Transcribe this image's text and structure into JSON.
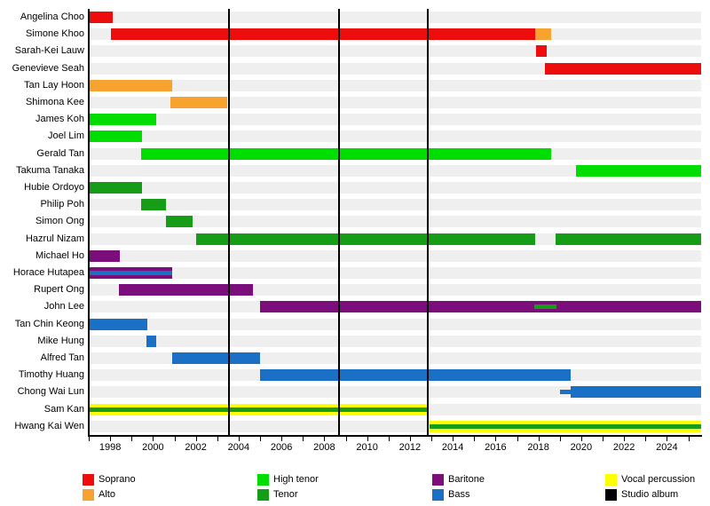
{
  "chart_data": {
    "type": "timeline",
    "title": "",
    "xlabel": "",
    "ylabel": "",
    "grid": false,
    "x_domain": [
      1997,
      2025.6
    ],
    "x_tick_labels": [
      "1998",
      "2000",
      "2002",
      "2004",
      "2006",
      "2008",
      "2010",
      "2012",
      "2014",
      "2016",
      "2018",
      "2020",
      "2022",
      "2024"
    ],
    "x_tick_years": [
      1998,
      2000,
      2002,
      2004,
      2006,
      2008,
      2010,
      2012,
      2014,
      2016,
      2018,
      2020,
      2022,
      2024
    ],
    "minor_tick_start": 1997,
    "minor_tick_end": 2025,
    "albums_years": [
      2003.55,
      2008.7,
      2012.85
    ],
    "colors": {
      "soprano": "#ee0d0d",
      "alto": "#f7a32f",
      "high_tenor": "#00dd00",
      "tenor": "#169c16",
      "baritone": "#7c0e7c",
      "bass": "#1a70c5",
      "vocal_percussion": "#ffff00",
      "studio_album": "#000000",
      "row_track": "#efefef"
    },
    "legend": [
      {
        "label": "Soprano",
        "part": "soprano"
      },
      {
        "label": "Alto",
        "part": "alto"
      },
      {
        "label": "High tenor",
        "part": "high_tenor"
      },
      {
        "label": "Tenor",
        "part": "tenor"
      },
      {
        "label": "Baritone",
        "part": "baritone"
      },
      {
        "label": "Bass",
        "part": "bass"
      },
      {
        "label": "Vocal percussion",
        "part": "vocal_percussion"
      },
      {
        "label": "Studio album",
        "part": "studio_album"
      }
    ],
    "members": [
      {
        "name": "Angelina Choo",
        "bars": [
          {
            "part": "soprano",
            "start": 1997,
            "end": 1998.1
          }
        ]
      },
      {
        "name": "Simone Khoo",
        "bars": [
          {
            "part": "soprano",
            "start": 1998.05,
            "end": 2017.85
          },
          {
            "part": "alto",
            "start": 2017.85,
            "end": 2018.6
          }
        ]
      },
      {
        "name": "Sarah-Kei Lauw",
        "bars": [
          {
            "part": "soprano",
            "start": 2017.9,
            "end": 2018.4
          }
        ]
      },
      {
        "name": "Genevieve Seah",
        "bars": [
          {
            "part": "soprano",
            "start": 2018.3,
            "end": 2025.6
          }
        ]
      },
      {
        "name": "Tan Lay Hoon",
        "bars": [
          {
            "part": "alto",
            "start": 1997,
            "end": 2000.9
          }
        ]
      },
      {
        "name": "Shimona Kee",
        "bars": [
          {
            "part": "alto",
            "start": 2000.8,
            "end": 2003.45
          }
        ]
      },
      {
        "name": "James Koh",
        "bars": [
          {
            "part": "high_tenor",
            "start": 1997,
            "end": 2000.15
          }
        ]
      },
      {
        "name": "Joel Lim",
        "bars": [
          {
            "part": "high_tenor",
            "start": 1997,
            "end": 1999.5
          }
        ]
      },
      {
        "name": "Gerald Tan",
        "bars": [
          {
            "part": "high_tenor",
            "start": 1999.45,
            "end": 2018.6
          }
        ]
      },
      {
        "name": "Takuma Tanaka",
        "bars": [
          {
            "part": "high_tenor",
            "start": 2019.75,
            "end": 2025.6
          }
        ]
      },
      {
        "name": "Hubie Ordoyo",
        "bars": [
          {
            "part": "tenor",
            "start": 1997,
            "end": 1999.5
          }
        ]
      },
      {
        "name": "Philip Poh",
        "bars": [
          {
            "part": "tenor",
            "start": 1999.45,
            "end": 2000.6
          }
        ]
      },
      {
        "name": "Simon Ong",
        "bars": [
          {
            "part": "tenor",
            "start": 2000.6,
            "end": 2001.85
          }
        ]
      },
      {
        "name": "Hazrul Nizam",
        "bars": [
          {
            "part": "tenor",
            "start": 2002,
            "end": 2017.85
          },
          {
            "part": "tenor",
            "start": 2018.8,
            "end": 2025.6
          }
        ]
      },
      {
        "name": "Michael Ho",
        "bars": [
          {
            "part": "baritone",
            "start": 1997,
            "end": 1998.45
          }
        ]
      },
      {
        "name": "Horace Hutapea",
        "bars": [
          {
            "part": "baritone",
            "start": 1997,
            "end": 2000.9
          },
          {
            "part": "bass",
            "start": 1997,
            "end": 2000.9,
            "style": "thin"
          }
        ]
      },
      {
        "name": "Rupert Ong",
        "bars": [
          {
            "part": "baritone",
            "start": 1998.4,
            "end": 2004.65
          }
        ]
      },
      {
        "name": "John Lee",
        "bars": [
          {
            "part": "baritone",
            "start": 2005,
            "end": 2025.6
          },
          {
            "part": "tenor",
            "start": 2017.8,
            "end": 2018.85,
            "style": "thin"
          }
        ]
      },
      {
        "name": "Tan Chin Keong",
        "bars": [
          {
            "part": "bass",
            "start": 1997,
            "end": 1999.75
          }
        ]
      },
      {
        "name": "Mike Hung",
        "bars": [
          {
            "part": "bass",
            "start": 1999.7,
            "end": 2000.15
          }
        ]
      },
      {
        "name": "Alfred Tan",
        "bars": [
          {
            "part": "bass",
            "start": 2000.9,
            "end": 2005
          }
        ]
      },
      {
        "name": "Timothy Huang",
        "bars": [
          {
            "part": "bass",
            "start": 2005,
            "end": 2019.5
          }
        ]
      },
      {
        "name": "Chong Wai Lun",
        "bars": [
          {
            "part": "bass",
            "start": 2019,
            "end": 2019.5,
            "style": "thin"
          },
          {
            "part": "bass",
            "start": 2019.5,
            "end": 2025.6
          }
        ]
      },
      {
        "name": "Sam Kan",
        "bars": [
          {
            "part": "vocal_percussion",
            "start": 1997,
            "end": 2012.85
          },
          {
            "part": "tenor",
            "start": 1997,
            "end": 2012.85,
            "style": "thin"
          }
        ]
      },
      {
        "name": "Hwang Kai Wen",
        "bars": [
          {
            "part": "vocal_percussion",
            "start": 2012.9,
            "end": 2025.6
          },
          {
            "part": "tenor",
            "start": 2012.9,
            "end": 2025.6,
            "style": "thin"
          }
        ]
      }
    ]
  }
}
